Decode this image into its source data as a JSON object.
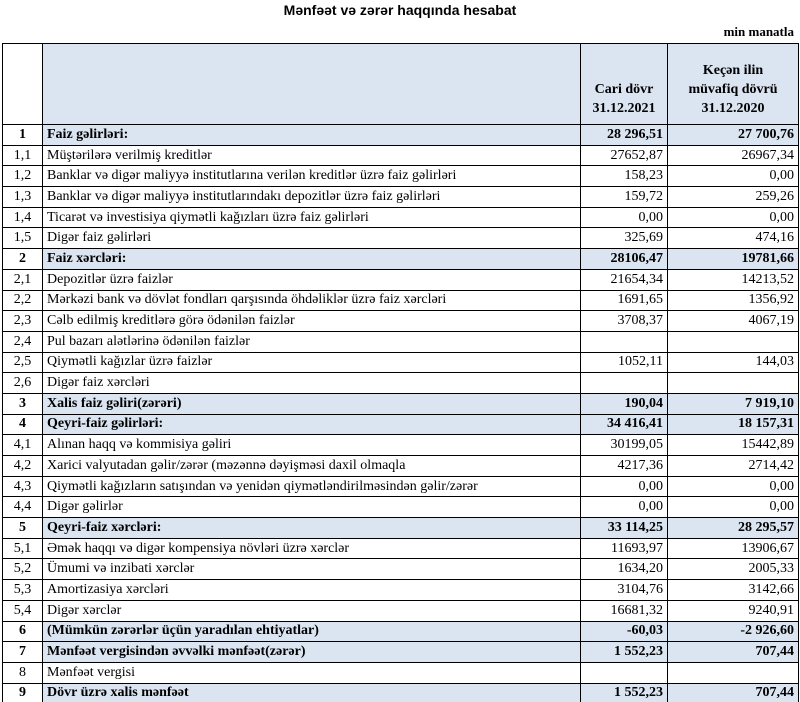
{
  "header": {
    "title": "Mənfəət və zərər haqqında hesabat",
    "unit": "min manatla"
  },
  "table": {
    "columns": [
      [
        "Cari dövr",
        "31.12.2021"
      ],
      [
        "Keçən ilin",
        "müvafiq dövrü",
        "31.12.2020"
      ]
    ],
    "rows": [
      {
        "no": "1",
        "label": "Faiz gəlirləri:",
        "current": "28 296,51",
        "previous": "27 700,76",
        "bold": true
      },
      {
        "no": "1,1",
        "label": "Müştərilərə verilmiş kreditlər",
        "current": "27652,87",
        "previous": "26967,34",
        "bold": false
      },
      {
        "no": "1,2",
        "label": "Banklar və digər maliyyə institutlarına verilən kreditlər üzrə faiz gəlirləri",
        "current": "158,23",
        "previous": "0,00",
        "bold": false
      },
      {
        "no": "1,3",
        "label": "Banklar və digər maliyyə institutlarındakı depozitlər üzrə faiz gəlirləri",
        "current": "159,72",
        "previous": "259,26",
        "bold": false
      },
      {
        "no": "1,4",
        "label": "Ticarət və investisiya qiymətli kağızları üzrə faiz gəlirləri",
        "current": "0,00",
        "previous": "0,00",
        "bold": false
      },
      {
        "no": "1,5",
        "label": "Digər faiz gəlirləri",
        "current": "325,69",
        "previous": "474,16",
        "bold": false
      },
      {
        "no": "2",
        "label": "Faiz xərcləri:",
        "current": "28106,47",
        "previous": "19781,66",
        "bold": true
      },
      {
        "no": "2,1",
        "label": "Depozitlər üzrə faizlər",
        "current": "21654,34",
        "previous": "14213,52",
        "bold": false
      },
      {
        "no": "2,2",
        "label": "Mərkəzi bank və dövlət fondları qarşısında öhdəliklər üzrə faiz xərcləri",
        "current": "1691,65",
        "previous": "1356,92",
        "bold": false
      },
      {
        "no": "2,3",
        "label": "Cəlb edilmiş kreditlərə görə ödənilən faizlər",
        "current": "3708,37",
        "previous": "4067,19",
        "bold": false
      },
      {
        "no": "2,4",
        "label": "Pul bazarı alətlərinə ödənilən faizlər",
        "current": null,
        "previous": null,
        "bold": false
      },
      {
        "no": "2,5",
        "label": "Qiymətli kağızlar üzrə faizlər",
        "current": "1052,11",
        "previous": "144,03",
        "bold": false
      },
      {
        "no": "2,6",
        "label": "Digər faiz xərcləri",
        "current": null,
        "previous": null,
        "bold": false
      },
      {
        "no": "3",
        "label": "Xalis faiz gəliri(zərəri)",
        "current": "190,04",
        "previous": "7 919,10",
        "bold": true
      },
      {
        "no": "4",
        "label": "Qeyri-faiz gəlirləri:",
        "current": "34 416,41",
        "previous": "18 157,31",
        "bold": true
      },
      {
        "no": "4,1",
        "label": "Alınan haqq və kommisiya gəliri",
        "current": "30199,05",
        "previous": "15442,89",
        "bold": false
      },
      {
        "no": "4,2",
        "label": "Xarici valyutadan gəlir/zərər (məzənnə dəyişməsi daxil olmaqla",
        "current": "4217,36",
        "previous": "2714,42",
        "bold": false
      },
      {
        "no": "4,3",
        "label": "Qiymətli kağızların satışından və yenidən qiymətləndirilməsindən gəlir/zərər",
        "current": "0,00",
        "previous": "0,00",
        "bold": false
      },
      {
        "no": "4,4",
        "label": "Digər gəlirlər",
        "current": "0,00",
        "previous": "0,00",
        "bold": false
      },
      {
        "no": "5",
        "label": "Qeyri-faiz xərcləri:",
        "current": "33 114,25",
        "previous": "28 295,57",
        "bold": true
      },
      {
        "no": "5,1",
        "label": "Əmək haqqı və digər kompensiya növləri üzrə xərclər",
        "current": "11693,97",
        "previous": "13906,67",
        "bold": false
      },
      {
        "no": "5,2",
        "label": "Ümumi və inzibati xərclər",
        "current": "1634,20",
        "previous": "2005,33",
        "bold": false
      },
      {
        "no": "5,3",
        "label": "Amortizasiya xərcləri",
        "current": "3104,76",
        "previous": "3142,66",
        "bold": false
      },
      {
        "no": "5,4",
        "label": "Digər xərclər",
        "current": "16681,32",
        "previous": "9240,91",
        "bold": false
      },
      {
        "no": "6",
        "label": "(Mümkün zərərlər üçün yaradılan ehtiyatlar)",
        "current": "-60,03",
        "previous": "-2 926,60",
        "bold": true
      },
      {
        "no": "7",
        "label": "Mənfəət vergisindən əvvəlki mənfəət(zərər)",
        "current": "1 552,23",
        "previous": "707,44",
        "bold": true
      },
      {
        "no": "8",
        "label": "Mənfəət vergisi",
        "current": null,
        "previous": null,
        "bold": false
      },
      {
        "no": "9",
        "label": "Dövr üzrə xalis mənfəət",
        "current": "1 552,23",
        "previous": "707,44",
        "bold": true
      }
    ]
  }
}
